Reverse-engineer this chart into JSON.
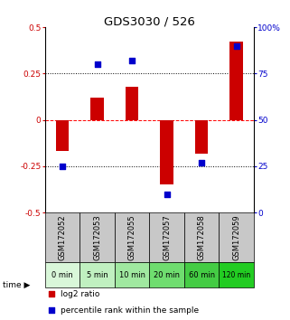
{
  "title": "GDS3030 / 526",
  "samples": [
    "GSM172052",
    "GSM172053",
    "GSM172055",
    "GSM172057",
    "GSM172058",
    "GSM172059"
  ],
  "time_labels": [
    "0 min",
    "5 min",
    "10 min",
    "20 min",
    "60 min",
    "120 min"
  ],
  "log2_ratio": [
    -0.17,
    0.12,
    0.18,
    -0.35,
    -0.18,
    0.42
  ],
  "percentile_rank": [
    25,
    80,
    82,
    10,
    27,
    90
  ],
  "ylim_left": [
    -0.5,
    0.5
  ],
  "ylim_right": [
    0,
    100
  ],
  "yticks_left": [
    -0.5,
    -0.25,
    0,
    0.25,
    0.5
  ],
  "yticks_right": [
    0,
    25,
    50,
    75,
    100
  ],
  "red_color": "#cc0000",
  "blue_color": "#0000cc",
  "hline_values": [
    0.25,
    0.0,
    -0.25
  ],
  "time_colors": [
    "#d9f7d9",
    "#c0f0c0",
    "#a0e8a0",
    "#6fdd6f",
    "#44cc44",
    "#22cc22"
  ],
  "sample_bg_color": "#c8c8c8",
  "legend_red": "log2 ratio",
  "legend_blue": "percentile rank within the sample"
}
